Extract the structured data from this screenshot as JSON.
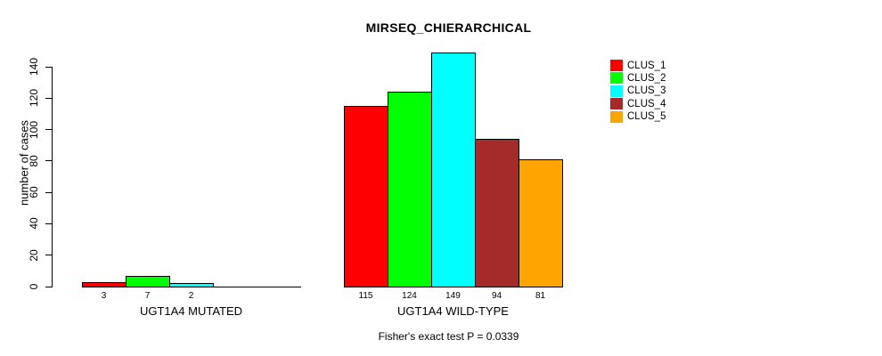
{
  "title": "MIRSEQ_CHIERARCHICAL",
  "chart_data": {
    "type": "bar",
    "title": "MIRSEQ_CHIERARCHICAL",
    "ylabel": "number of cases",
    "xlabel": "",
    "ylim": [
      0,
      140
    ],
    "yticks": [
      0,
      20,
      40,
      60,
      80,
      100,
      120,
      140
    ],
    "grid": false,
    "legend_position": "top-right",
    "clusters": [
      {
        "label": "CLUS_1",
        "color": "#FF0000"
      },
      {
        "label": "CLUS_2",
        "color": "#00FF00"
      },
      {
        "label": "CLUS_3",
        "color": "#00FFFF"
      },
      {
        "label": "CLUS_4",
        "color": "#A52A2A"
      },
      {
        "label": "CLUS_5",
        "color": "#FFA500"
      }
    ],
    "groups": [
      {
        "label": "UGT1A4 MUTATED",
        "values": [
          3,
          7,
          2,
          0,
          0
        ],
        "value_labels": [
          "3",
          "7",
          "2",
          "",
          ""
        ]
      },
      {
        "label": "UGT1A4 WILD-TYPE",
        "values": [
          115,
          124,
          149,
          94,
          81
        ],
        "value_labels": [
          "115",
          "124",
          "149",
          "94",
          "81"
        ]
      }
    ],
    "annotation": "Fisher's exact test P = 0.0339"
  }
}
